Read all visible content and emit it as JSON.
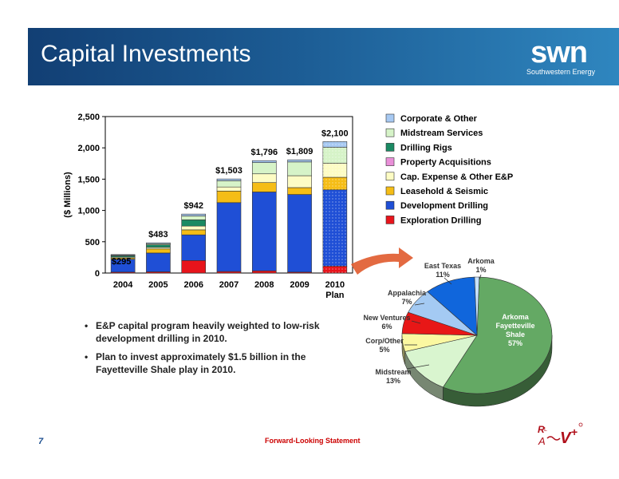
{
  "slide": {
    "title": "Capital Investments",
    "logo_word": "swn",
    "logo_sub": "Southwestern Energy",
    "page_number": "7",
    "footer_note": "Forward-Looking Statement",
    "bullets": [
      "E&P capital program heavily weighted to low-risk development drilling in 2010.",
      "Plan to invest approximately $1.5 billion in the Fayetteville Shale play in 2010."
    ],
    "rav_logo": "RAV+"
  },
  "colors": {
    "Exploration Drilling": "#e8141b",
    "Development Drilling": "#1f4fd6",
    "Leasehold & Seismic": "#f5bd16",
    "Cap. Expense & Other E&P": "#fdfcc4",
    "Property Acquisitions": "#e98fd8",
    "Drilling Rigs": "#1a8a63",
    "Midstream Services": "#d6f3c8",
    "Corporate & Other": "#a7c9f2"
  },
  "chart_data": [
    {
      "type": "bar",
      "stacked": true,
      "categories": [
        "2004",
        "2005",
        "2006",
        "2007",
        "2008",
        "2009",
        "2010\nPlan"
      ],
      "ylabel": "($ Millions)",
      "ylim": [
        0,
        2500
      ],
      "yticks": [
        "0",
        "500",
        "1,000",
        "1,500",
        "2,000",
        "2,500"
      ],
      "totals_labels": [
        "$295",
        "$483",
        "$942",
        "$1,503",
        "$1,796",
        "$1,809",
        "$2,100"
      ],
      "legend_position": "right",
      "series": [
        {
          "name": "Exploration Drilling",
          "values": [
            15,
            20,
            200,
            25,
            35,
            15,
            110
          ]
        },
        {
          "name": "Development Drilling",
          "values": [
            205,
            300,
            410,
            1100,
            1260,
            1240,
            1220
          ]
        },
        {
          "name": "Leasehold & Seismic",
          "values": [
            20,
            65,
            80,
            185,
            150,
            110,
            200
          ]
        },
        {
          "name": "Cap. Expense & Other E&P",
          "values": [
            15,
            25,
            60,
            65,
            140,
            190,
            225
          ]
        },
        {
          "name": "Property Acquisitions",
          "values": [
            0,
            0,
            0,
            0,
            0,
            0,
            0
          ]
        },
        {
          "name": "Drilling Rigs",
          "values": [
            20,
            40,
            100,
            0,
            0,
            0,
            0
          ]
        },
        {
          "name": "Midstream Services",
          "values": [
            10,
            18,
            62,
            100,
            180,
            220,
            255
          ]
        },
        {
          "name": "Corporate & Other",
          "values": [
            10,
            15,
            30,
            28,
            31,
            34,
            90
          ]
        }
      ]
    },
    {
      "type": "pie",
      "slices": [
        {
          "label": "Arkoma Fayetteville Shale",
          "value": 57,
          "pct_text": "57%",
          "color": "#64a964"
        },
        {
          "label": "Midstream",
          "value": 13,
          "pct_text": "13%",
          "color": "#d9f5cf"
        },
        {
          "label": "Corp/Other",
          "value": 5,
          "pct_text": "5%",
          "color": "#fbf8a1"
        },
        {
          "label": "New Ventures",
          "value": 6,
          "pct_text": "6%",
          "color": "#e81717"
        },
        {
          "label": "Appalachia",
          "value": 7,
          "pct_text": "7%",
          "color": "#a4caf3"
        },
        {
          "label": "East Texas",
          "value": 11,
          "pct_text": "11%",
          "color": "#1066dc"
        },
        {
          "label": "Arkoma",
          "value": 1,
          "pct_text": "1%",
          "color": "#c8e3ff"
        }
      ]
    }
  ]
}
